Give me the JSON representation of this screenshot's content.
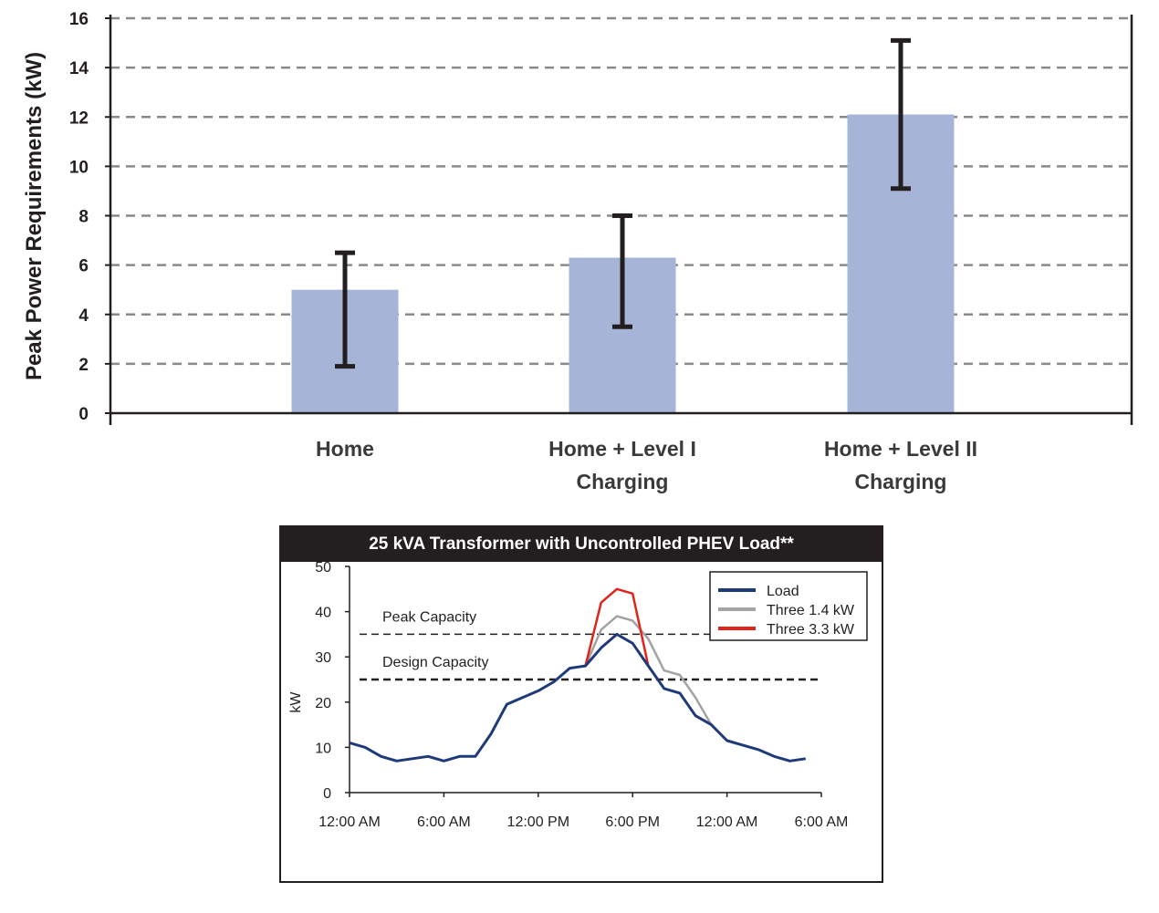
{
  "chart_data": [
    {
      "type": "bar",
      "title": "",
      "xlabel": "",
      "ylabel": "Peak Power Requirements (kW)",
      "ylim": [
        0,
        16
      ],
      "yticks": [
        0,
        2,
        4,
        6,
        8,
        10,
        12,
        14,
        16
      ],
      "grid": true,
      "categories": [
        [
          "Home"
        ],
        [
          "Home + Level I",
          "Charging"
        ],
        [
          "Home + Level II",
          "Charging"
        ]
      ],
      "values": [
        5.0,
        6.3,
        12.1
      ],
      "error_low": [
        1.9,
        3.5,
        9.1
      ],
      "error_high": [
        6.5,
        8.0,
        15.1
      ],
      "bar_color": "#a6b4d8",
      "error_color": "#231f20"
    },
    {
      "type": "line",
      "title": "25 kVA Transformer with Uncontrolled PHEV Load**",
      "xlabel": "",
      "ylabel": "kW",
      "ylim": [
        0,
        50
      ],
      "yticks": [
        0,
        10,
        20,
        30,
        40,
        50
      ],
      "xlim": [
        0,
        30
      ],
      "xticks": [
        0,
        6,
        12,
        18,
        24,
        30
      ],
      "xtick_labels": [
        "12:00 AM",
        "6:00 AM",
        "12:00 PM",
        "6:00 PM",
        "12:00 AM",
        "6:00 AM"
      ],
      "legend_position": "top-right",
      "annotations": [
        {
          "text": "Peak Capacity",
          "y": 35
        },
        {
          "text": "Design Capacity",
          "y": 25
        }
      ],
      "series": [
        {
          "name": "Load",
          "color": "#1f3a7a",
          "x": [
            0,
            1,
            2,
            3,
            4,
            5,
            6,
            7,
            8,
            9,
            10,
            11,
            12,
            13,
            14,
            15,
            16,
            17,
            18,
            19,
            20,
            21,
            22,
            23,
            24,
            25,
            26,
            27,
            28,
            29,
            30
          ],
          "y": [
            11,
            10,
            8,
            7,
            7.5,
            8,
            7,
            8,
            8,
            13,
            19.5,
            21,
            22.5,
            24.5,
            27.5,
            28,
            32,
            35,
            33,
            28,
            23,
            22,
            17,
            15,
            11.5,
            10.5,
            9.5,
            8,
            7,
            7.5,
            null
          ]
        },
        {
          "name": "Three 1.4 kW",
          "color": "#a3a3a3",
          "x": [
            15,
            16,
            17,
            18,
            19,
            20,
            21,
            22,
            23
          ],
          "y": [
            28,
            36,
            39,
            38,
            34,
            27,
            26,
            21,
            15
          ]
        },
        {
          "name": "Three 3.3 kW",
          "color": "#e2231a",
          "x": [
            15,
            16,
            17,
            17.5,
            18,
            19
          ],
          "y": [
            28,
            42,
            45,
            44.5,
            44,
            28
          ]
        }
      ],
      "reference_lines": [
        {
          "label": "Peak Capacity",
          "y": 35,
          "style": "dashed"
        },
        {
          "label": "Design Capacity",
          "y": 25,
          "style": "dashed"
        }
      ]
    }
  ]
}
